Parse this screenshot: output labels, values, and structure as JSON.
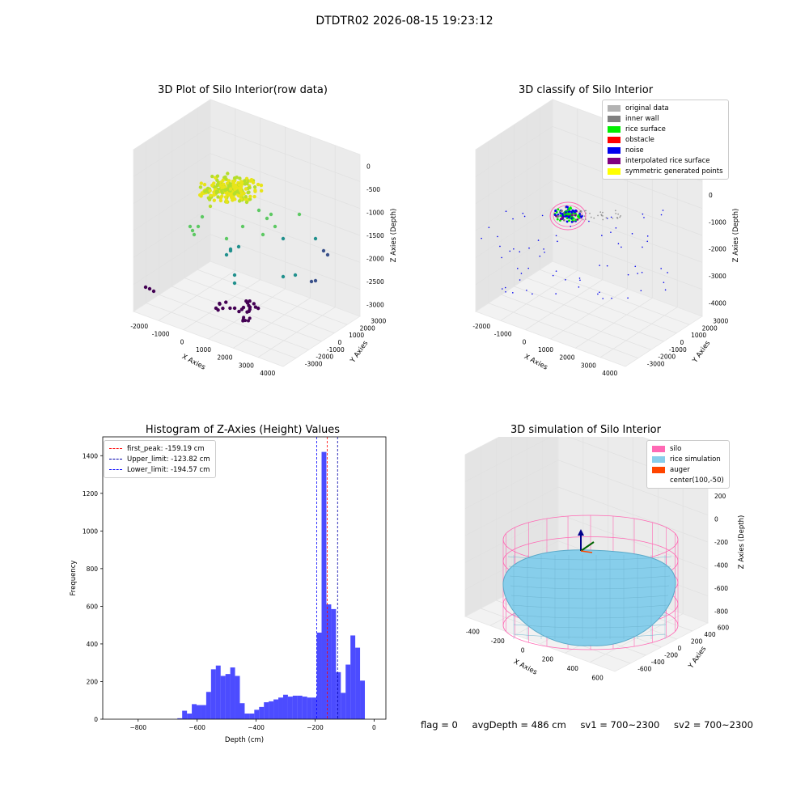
{
  "suptitle": "DTDTR02 2026-08-15 19:23:12",
  "footer": {
    "flag": "flag = 0",
    "avg_depth": "avgDepth = 486 cm",
    "sv1": "sv1 = 700~2300",
    "sv2": "sv2 = 700~2300"
  },
  "chart_data": [
    {
      "type": "scatter3d",
      "title": "3D Plot of Silo Interior(row data)",
      "xlabel": "X Axies",
      "ylabel": "Y Axies",
      "zlabel": "Z Axies (Depth)",
      "x_ticks": [
        "-2000",
        "-1000",
        "0",
        "1000",
        "2000",
        "3000",
        "4000"
      ],
      "y_ticks": [
        "3000",
        "2000",
        "1000",
        "0",
        "-1000",
        "-2000",
        "-3000"
      ],
      "z_ticks": [
        "0",
        "-500",
        "-1000",
        "-1500",
        "-2000",
        "-2500",
        "-3000"
      ],
      "colormap": "viridis"
    },
    {
      "type": "scatter3d",
      "title": "3D classify of Silo Interior",
      "xlabel": "X Axies",
      "ylabel": "Y Axies",
      "zlabel": "Z Axies (Depth)",
      "x_ticks": [
        "-2000",
        "-1000",
        "0",
        "1000",
        "2000",
        "3000",
        "4000"
      ],
      "y_ticks": [
        "3000",
        "2000",
        "1000",
        "0",
        "-1000",
        "-2000",
        "-3000"
      ],
      "z_ticks": [
        "1000",
        "0",
        "-1000",
        "-2000",
        "-3000",
        "-4000"
      ],
      "legend_top_tick": "2000",
      "legend": [
        {
          "label": "original data",
          "color": "#b3b3b3"
        },
        {
          "label": "inner wall",
          "color": "#808080"
        },
        {
          "label": "rice surface",
          "color": "#00ee00"
        },
        {
          "label": "obstacle",
          "color": "#ff0000"
        },
        {
          "label": "noise",
          "color": "#0000ee"
        },
        {
          "label": "interpolated rice surface",
          "color": "#800080"
        },
        {
          "label": "symmetric generated points",
          "color": "#ffff00"
        }
      ]
    },
    {
      "type": "bar",
      "title": "Histogram of Z-Axies (Height) Values",
      "xlabel": "Depth (cm)",
      "ylabel": "Frequency",
      "xlim": [
        -920,
        40
      ],
      "ylim": [
        0,
        1500
      ],
      "x_ticks": [
        "-800",
        "-600",
        "-400",
        "-200",
        "0"
      ],
      "y_ticks": [
        "0",
        "200",
        "400",
        "600",
        "800",
        "1000",
        "1200",
        "1400"
      ],
      "bin_width": 16.3,
      "bin_start": -667,
      "values": [
        5,
        45,
        30,
        80,
        75,
        75,
        145,
        265,
        285,
        230,
        240,
        275,
        230,
        85,
        30,
        30,
        50,
        65,
        90,
        95,
        105,
        115,
        130,
        120,
        125,
        125,
        120,
        115,
        115,
        460,
        1420,
        610,
        585,
        250,
        140,
        290,
        445,
        380,
        205
      ],
      "color": "#0000ff",
      "lines": [
        {
          "label": "first_peak: -159.19 cm",
          "x": -159.19,
          "color": "#ff0000"
        },
        {
          "label": "Upper_limit: -123.82 cm",
          "x": -123.82,
          "color": "#0000aa"
        },
        {
          "label": "Lower_limit: -194.57 cm",
          "x": -194.57,
          "color": "#0000ff"
        }
      ]
    },
    {
      "type": "surface3d",
      "title": "3D simulation of Silo Interior",
      "xlabel": "X Axies",
      "ylabel": "Y Axies",
      "zlabel": "Z Axies (Depth)",
      "x_ticks": [
        "-400",
        "-200",
        "0",
        "200",
        "400",
        "600"
      ],
      "y_ticks": [
        "600",
        "400",
        "200",
        "0",
        "-200",
        "-400",
        "-600"
      ],
      "z_ticks": [
        "400",
        "200",
        "0",
        "-200",
        "-400",
        "-600",
        "-800"
      ],
      "legend": [
        {
          "label": "silo",
          "color": "#ff69b4"
        },
        {
          "label": "rice simulation",
          "color": "#87ceeb"
        },
        {
          "label": "auger",
          "color": "#ff4500"
        },
        {
          "label": "center(100,-50)",
          "color": ""
        }
      ]
    }
  ]
}
